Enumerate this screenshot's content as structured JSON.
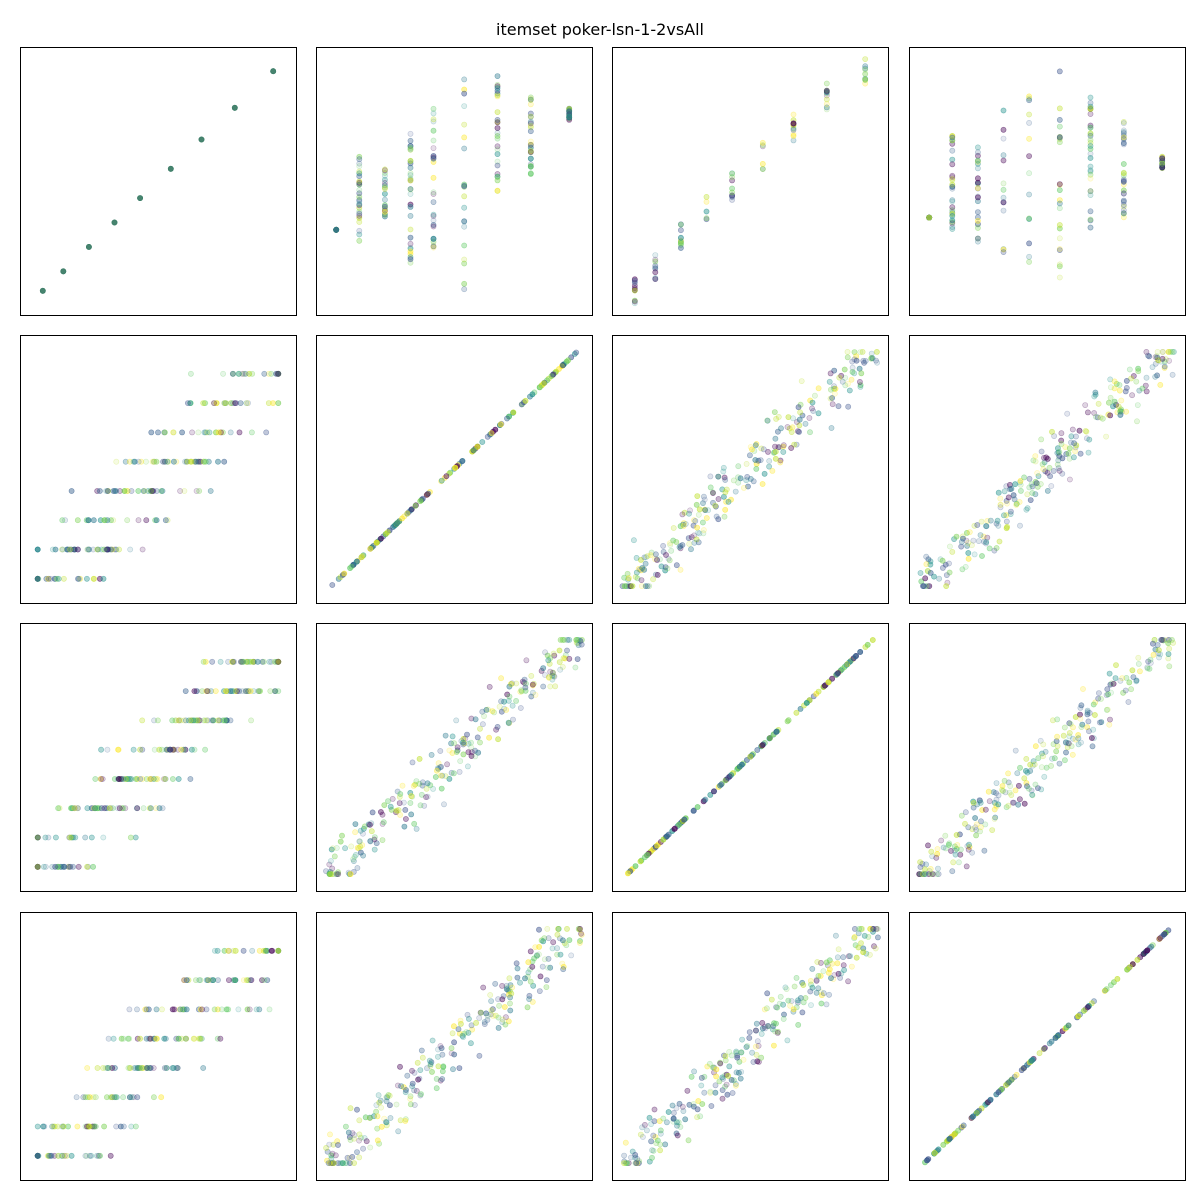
{
  "title": "itemset poker-lsn-1-2vsAll",
  "colors": {
    "palette": [
      "#440154",
      "#3b528b",
      "#21918c",
      "#5ec962",
      "#2a788e",
      "#7ad151",
      "#355f8d",
      "#bddf26",
      "#fde725"
    ],
    "diag_point": "#3f7f6a",
    "frame": "#000000"
  },
  "chart_data": {
    "type": "scatter",
    "layout": "4x4 scatter matrix",
    "axes_visible": false,
    "ticks": "none",
    "grid": false,
    "legend": "none",
    "variables": 4,
    "panels": [
      {
        "row": 0,
        "col": 0,
        "kind": "diagonal-discrete",
        "xlim": [
          0,
          10
        ],
        "ylim": [
          0,
          10
        ],
        "points": [
          [
            0.5,
            0.5
          ],
          [
            1.3,
            1.3
          ],
          [
            2.3,
            2.3
          ],
          [
            3.3,
            3.3
          ],
          [
            4.3,
            4.3
          ],
          [
            5.5,
            5.5
          ],
          [
            6.7,
            6.7
          ],
          [
            8.0,
            8.0
          ],
          [
            9.5,
            9.5
          ]
        ]
      },
      {
        "row": 0,
        "col": 1,
        "kind": "vertical-stripes",
        "xlim": [
          0,
          10
        ],
        "ylim": [
          0,
          10
        ],
        "stripes": [
          [
            0.4,
            [
              3.0,
              3.0
            ]
          ],
          [
            1.3,
            [
              2.5,
              6.0
            ]
          ],
          [
            2.3,
            [
              3.0,
              5.5
            ]
          ],
          [
            3.3,
            [
              1.5,
              7.5
            ]
          ],
          [
            4.2,
            [
              2.0,
              8.0
            ]
          ],
          [
            5.4,
            [
              0.5,
              9.5
            ]
          ],
          [
            6.7,
            [
              4.5,
              9.5
            ]
          ],
          [
            8.0,
            [
              4.5,
              8.5
            ]
          ],
          [
            9.5,
            [
              7.5,
              8.0
            ]
          ]
        ]
      },
      {
        "row": 0,
        "col": 2,
        "kind": "diagonal-spread",
        "xlim": [
          0,
          10
        ],
        "ylim": [
          0,
          10
        ],
        "points": [
          [
            0.5,
            0.5
          ],
          [
            1.3,
            1.5
          ],
          [
            2.3,
            2.8
          ],
          [
            3.3,
            3.8
          ],
          [
            4.3,
            4.8
          ],
          [
            5.5,
            6.0
          ],
          [
            6.7,
            7.2
          ],
          [
            8.0,
            8.5
          ],
          [
            9.5,
            9.5
          ]
        ]
      },
      {
        "row": 0,
        "col": 3,
        "kind": "vertical-stripes",
        "xlim": [
          0,
          10
        ],
        "ylim": [
          0,
          10
        ],
        "stripes": [
          [
            0.4,
            [
              3.5,
              3.5
            ]
          ],
          [
            1.3,
            [
              3.0,
              7.0
            ]
          ],
          [
            2.3,
            [
              2.5,
              6.5
            ]
          ],
          [
            3.3,
            [
              2.0,
              8.0
            ]
          ],
          [
            4.3,
            [
              1.0,
              8.5
            ]
          ],
          [
            5.5,
            [
              0.5,
              9.5
            ]
          ],
          [
            6.7,
            [
              3.0,
              8.5
            ]
          ],
          [
            8.0,
            [
              3.5,
              7.5
            ]
          ],
          [
            9.5,
            [
              5.5,
              6.0
            ]
          ]
        ]
      },
      {
        "row": 1,
        "col": 0,
        "kind": "horizontal-stripes",
        "xlim": [
          0,
          10
        ],
        "ylim": [
          0,
          10
        ]
      },
      {
        "row": 1,
        "col": 1,
        "kind": "diagonal-line",
        "xlim": [
          0,
          10
        ],
        "ylim": [
          0,
          10
        ]
      },
      {
        "row": 1,
        "col": 2,
        "kind": "correlated-cloud",
        "xlim": [
          0,
          10
        ],
        "ylim": [
          0,
          10
        ]
      },
      {
        "row": 1,
        "col": 3,
        "kind": "correlated-cloud",
        "xlim": [
          0,
          10
        ],
        "ylim": [
          0,
          10
        ]
      },
      {
        "row": 2,
        "col": 0,
        "kind": "horizontal-stripes",
        "xlim": [
          0,
          10
        ],
        "ylim": [
          0,
          10
        ]
      },
      {
        "row": 2,
        "col": 1,
        "kind": "correlated-cloud",
        "xlim": [
          0,
          10
        ],
        "ylim": [
          0,
          10
        ]
      },
      {
        "row": 2,
        "col": 2,
        "kind": "diagonal-line",
        "xlim": [
          0,
          10
        ],
        "ylim": [
          0,
          10
        ]
      },
      {
        "row": 2,
        "col": 3,
        "kind": "correlated-cloud",
        "xlim": [
          0,
          10
        ],
        "ylim": [
          0,
          10
        ]
      },
      {
        "row": 3,
        "col": 0,
        "kind": "horizontal-stripes",
        "xlim": [
          0,
          10
        ],
        "ylim": [
          0,
          10
        ]
      },
      {
        "row": 3,
        "col": 1,
        "kind": "correlated-cloud",
        "xlim": [
          0,
          10
        ],
        "ylim": [
          0,
          10
        ]
      },
      {
        "row": 3,
        "col": 2,
        "kind": "correlated-cloud",
        "xlim": [
          0,
          10
        ],
        "ylim": [
          0,
          10
        ]
      },
      {
        "row": 3,
        "col": 3,
        "kind": "diagonal-line",
        "xlim": [
          0,
          10
        ],
        "ylim": [
          0,
          10
        ]
      }
    ]
  }
}
